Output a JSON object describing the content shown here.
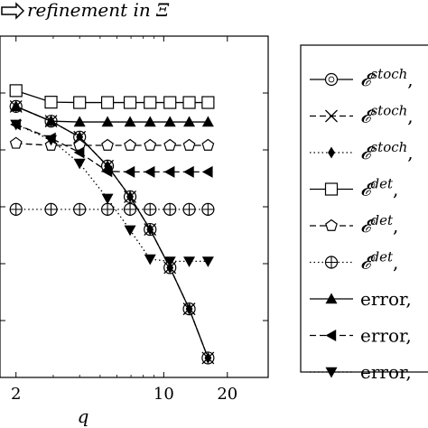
{
  "chart_data": {
    "type": "line",
    "title": "refinement in Ξ",
    "xlabel": "q",
    "ylabel": "",
    "x_scale": "log",
    "y_scale": "log",
    "xlim": [
      1.68,
      31.2
    ],
    "ylim": [
      1e-08,
      0.01
    ],
    "x_ticks": [
      {
        "value": 2,
        "label": "2"
      },
      {
        "value": 10,
        "label": "10"
      },
      {
        "value": 20,
        "label": "20"
      }
    ],
    "grid": false,
    "legend_position": "right",
    "series": [
      {
        "name": "𝓔",
        "sup": "stoch",
        "suffix": ",",
        "marker": "circle",
        "line": "solid",
        "x": [
          2,
          2.93,
          4,
          5.42,
          6.93,
          8.62,
          10.7,
          13.2,
          16.2
        ],
        "y": [
          0.00058,
          0.00032,
          0.000168,
          5.2e-05,
          1.5e-05,
          4e-06,
          8.5e-07,
          1.6e-07,
          2.2e-08
        ]
      },
      {
        "name": "𝓔",
        "sup": "stoch",
        "suffix": ",",
        "marker": "x",
        "line": "dashed",
        "x": [
          2,
          2.93,
          4,
          5.42,
          6.93,
          8.62,
          10.7,
          13.2,
          16.2
        ],
        "y": [
          0.00058,
          0.00032,
          0.000168,
          5.2e-05,
          1.5e-05,
          4e-06,
          8.5e-07,
          1.6e-07,
          2.2e-08
        ]
      },
      {
        "name": "𝓔",
        "sup": "stoch",
        "suffix": ",",
        "marker": "diamond",
        "line": "dotted",
        "x": [
          2,
          2.93,
          4,
          5.42,
          6.93,
          8.62,
          10.7,
          13.2,
          16.2
        ],
        "y": [
          0.00058,
          0.00032,
          0.000168,
          5.2e-05,
          1.5e-05,
          4e-06,
          8.5e-07,
          1.6e-07,
          2.2e-08
        ]
      },
      {
        "name": "𝓔",
        "sup": "det",
        "suffix": ",",
        "marker": "square",
        "line": "solid",
        "x": [
          2,
          2.93,
          4,
          5.42,
          6.93,
          8.62,
          10.7,
          13.2,
          16.2
        ],
        "y": [
          0.0011,
          0.00069,
          0.00068,
          0.00068,
          0.00068,
          0.00068,
          0.00068,
          0.00068,
          0.00068
        ]
      },
      {
        "name": "𝓔",
        "sup": "det",
        "suffix": ",",
        "marker": "pentagon",
        "line": "dashed",
        "x": [
          2,
          2.93,
          4,
          5.42,
          6.93,
          8.62,
          10.7,
          13.2,
          16.2
        ],
        "y": [
          0.00013,
          0.00012,
          0.00012,
          0.00012,
          0.00012,
          0.00012,
          0.00012,
          0.00012,
          0.00012
        ]
      },
      {
        "name": "𝓔",
        "sup": "det",
        "suffix": ",",
        "marker": "circleplus",
        "line": "dotted",
        "x": [
          2,
          2.93,
          4,
          5.42,
          6.93,
          8.62,
          10.7,
          13.2,
          16.2
        ],
        "y": [
          9e-06,
          9e-06,
          9e-06,
          9e-06,
          9e-06,
          9e-06,
          9e-06,
          9e-06,
          9e-06
        ]
      },
      {
        "name": "error",
        "suffix": ",",
        "marker": "triangle-up",
        "line": "solid",
        "x": [
          2,
          2.93,
          4,
          5.42,
          6.93,
          8.62,
          10.7,
          13.2,
          16.2
        ],
        "y": [
          0.00058,
          0.00032,
          0.00031,
          0.00031,
          0.00031,
          0.00031,
          0.00031,
          0.00031,
          0.00031
        ]
      },
      {
        "name": "error",
        "suffix": ",",
        "marker": "triangle-left",
        "line": "dashed",
        "x": [
          2,
          2.93,
          4,
          5.42,
          6.93,
          8.62,
          10.7,
          13.2,
          16.2
        ],
        "y": [
          0.00028,
          0.00016,
          9e-05,
          4.2e-05,
          4.1e-05,
          4.1e-05,
          4.1e-05,
          4.1e-05,
          4.1e-05
        ]
      },
      {
        "name": "error",
        "suffix": ",",
        "marker": "triangle-down",
        "line": "dotted",
        "x": [
          2,
          2.93,
          4,
          5.42,
          6.93,
          8.62,
          10.7,
          13.2,
          16.2
        ],
        "y": [
          0.00028,
          0.00015,
          5.8e-05,
          1.4e-05,
          3.9e-06,
          1.2e-06,
          1.1e-06,
          1.1e-06,
          1.1e-06
        ]
      }
    ]
  }
}
